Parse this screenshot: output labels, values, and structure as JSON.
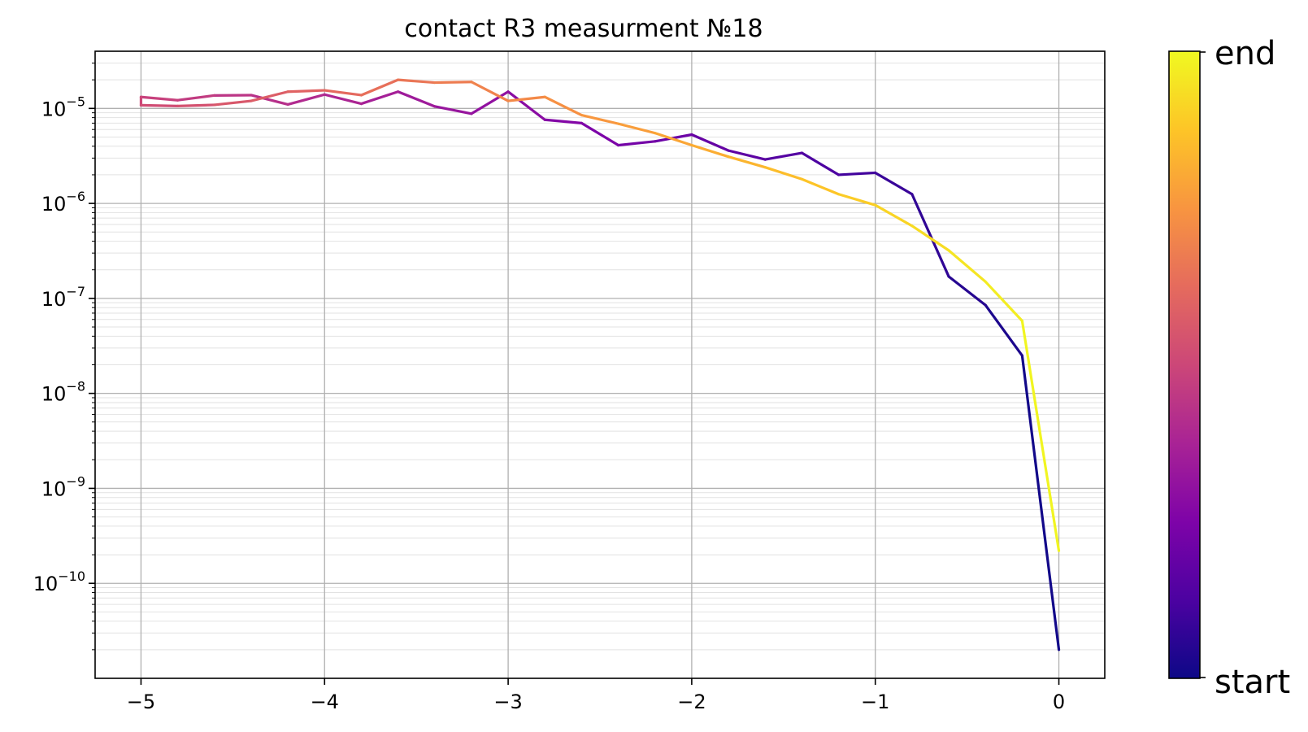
{
  "chart_data": {
    "type": "line",
    "title": "contact R3 measurment №18",
    "xlabel": "",
    "ylabel": "",
    "yscale": "log",
    "xlim": [
      -5.25,
      0.25
    ],
    "ylim": [
      1e-11,
      4e-05
    ],
    "grid": true,
    "x_ticks": [
      -5,
      -4,
      -3,
      -2,
      -1,
      0
    ],
    "x_tick_labels": [
      "−5",
      "−4",
      "−3",
      "−2",
      "−1",
      "0"
    ],
    "y_ticks": [
      {
        "value": 1e-05,
        "base": "10",
        "exp": "−5"
      },
      {
        "value": 1e-06,
        "base": "10",
        "exp": "−6"
      },
      {
        "value": 1e-07,
        "base": "10",
        "exp": "−7"
      },
      {
        "value": 1e-08,
        "base": "10",
        "exp": "−8"
      },
      {
        "value": 1e-09,
        "base": "10",
        "exp": "−9"
      },
      {
        "value": 1e-10,
        "base": "10",
        "exp": "−10"
      }
    ],
    "colormap": "plasma",
    "colorbar": {
      "labels": {
        "start": "start",
        "end": "end"
      }
    },
    "x": [
      0,
      -0.2,
      -0.4,
      -0.6,
      -0.8,
      -1.0,
      -1.2,
      -1.4,
      -1.6,
      -1.8,
      -2.0,
      -2.2,
      -2.4,
      -2.6,
      -2.8,
      -3.0,
      -3.2,
      -3.4,
      -3.6,
      -3.8,
      -4.0,
      -4.2,
      -4.4,
      -4.6,
      -4.8,
      -5.0,
      -5.0,
      -4.8,
      -4.6,
      -4.4,
      -4.2,
      -4.0,
      -3.8,
      -3.6,
      -3.4,
      -3.2,
      -3.0,
      -2.8,
      -2.6,
      -2.4,
      -2.2,
      -2.0,
      -1.8,
      -1.6,
      -1.4,
      -1.2,
      -1.0,
      -0.8,
      -0.6,
      -0.4,
      -0.2,
      0
    ],
    "y": [
      2e-11,
      2.5e-08,
      8.5e-08,
      1.7e-07,
      1.25e-06,
      2.1e-06,
      2e-06,
      3.4e-06,
      2.9e-06,
      3.6e-06,
      5.3e-06,
      4.5e-06,
      4.1e-06,
      7e-06,
      7.6e-06,
      1.5e-05,
      8.8e-06,
      1.05e-05,
      1.5e-05,
      1.12e-05,
      1.4e-05,
      1.1e-05,
      1.38e-05,
      1.37e-05,
      1.22e-05,
      1.32e-05,
      1.08e-05,
      1.06e-05,
      1.09e-05,
      1.2e-05,
      1.5e-05,
      1.55e-05,
      1.38e-05,
      2e-05,
      1.87e-05,
      1.9e-05,
      1.2e-05,
      1.32e-05,
      8.5e-06,
      6.9e-06,
      5.5e-06,
      4.1e-06,
      3.1e-06,
      2.4e-06,
      1.8e-06,
      1.25e-06,
      9.6e-07,
      5.8e-07,
      3.2e-07,
      1.5e-07,
      5.8e-08,
      2.2e-10
    ]
  }
}
